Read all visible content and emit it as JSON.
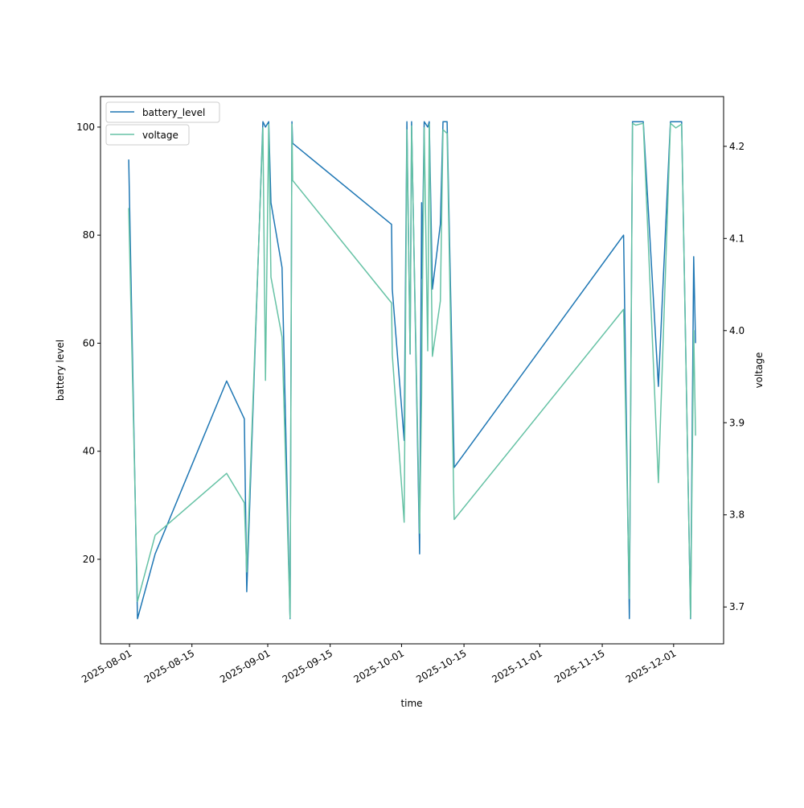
{
  "chart_data": {
    "type": "line",
    "xlabel": "time",
    "ylabel": "battery level",
    "ylabel_right": "voltage",
    "xlim": [
      "2025-07-25T12:00",
      "2025-12-12T05:00"
    ],
    "ylim": [
      4.35,
      105.65
    ],
    "ylim_right": [
      3.66,
      4.254
    ],
    "x_ticks": [
      "2025-08-01",
      "2025-08-15",
      "2025-09-01",
      "2025-09-15",
      "2025-10-01",
      "2025-10-15",
      "2025-11-01",
      "2025-11-15",
      "2025-12-01"
    ],
    "y_ticks": [
      20,
      40,
      60,
      80,
      100
    ],
    "y_ticks_right": [
      3.7,
      3.8,
      3.9,
      4.0,
      4.1,
      4.2
    ],
    "legend_placement": "upper-left",
    "legends": [
      "battery_level",
      "voltage"
    ],
    "colors": {
      "battery_level": "#1f77b4",
      "voltage": "#66c2a5"
    },
    "x": [
      "2025-07-31T20:00",
      "2025-08-02T19:00",
      "2025-08-06T18:00",
      "2025-08-22T19:00",
      "2025-08-26T18:00",
      "2025-08-27T07:00",
      "2025-08-30T22:00",
      "2025-08-31T12:00",
      "2025-09-01T05:00",
      "2025-09-01T17:00",
      "2025-09-04T05:00",
      "2025-09-06T00:00",
      "2025-09-06T10:00",
      "2025-09-06T14:00",
      "2025-09-28T18:00",
      "2025-09-28T22:00",
      "2025-10-01T14:00",
      "2025-10-02T05:00",
      "2025-10-02T22:00",
      "2025-10-03T06:00",
      "2025-10-05T01:00",
      "2025-10-05T12:00",
      "2025-10-05T14:00",
      "2025-10-06T02:00",
      "2025-10-06T21:00",
      "2025-10-07T05:00",
      "2025-10-07T22:00",
      "2025-10-09T17:00",
      "2025-10-10T07:00",
      "2025-10-11T05:00",
      "2025-10-12T19:00",
      "2025-11-19T19:00",
      "2025-11-21T02:00",
      "2025-11-21T19:00",
      "2025-11-22T12:00",
      "2025-11-24T05:00",
      "2025-11-27T14:00",
      "2025-11-30T07:00",
      "2025-12-01T12:00",
      "2025-12-02T19:00",
      "2025-12-04T19:00",
      "2025-12-05T12:00",
      "2025-12-05T22:00"
    ],
    "series": [
      {
        "name": "battery_level",
        "axis": "left",
        "values": [
          94,
          9,
          21,
          53,
          46,
          14,
          101,
          100,
          101,
          86,
          74,
          9,
          101,
          97,
          82,
          70,
          42,
          101,
          58,
          101,
          21,
          86,
          72,
          101,
          100,
          101,
          70,
          82,
          101,
          101,
          37,
          80,
          9,
          101,
          101,
          101,
          52,
          101,
          101,
          101,
          9,
          76,
          60
        ]
      },
      {
        "name": "voltage",
        "axis": "right",
        "values": [
          4.133,
          3.706,
          3.778,
          3.845,
          3.813,
          3.738,
          4.22,
          3.946,
          4.224,
          4.058,
          3.993,
          3.688,
          4.224,
          4.163,
          4.03,
          3.974,
          3.792,
          4.218,
          3.975,
          4.222,
          3.78,
          3.93,
          4.0,
          4.22,
          3.978,
          4.224,
          3.972,
          4.032,
          4.218,
          4.214,
          3.795,
          4.023,
          3.709,
          4.225,
          4.223,
          4.225,
          3.835,
          4.225,
          4.22,
          4.224,
          3.688,
          4.0,
          3.886
        ]
      }
    ]
  }
}
